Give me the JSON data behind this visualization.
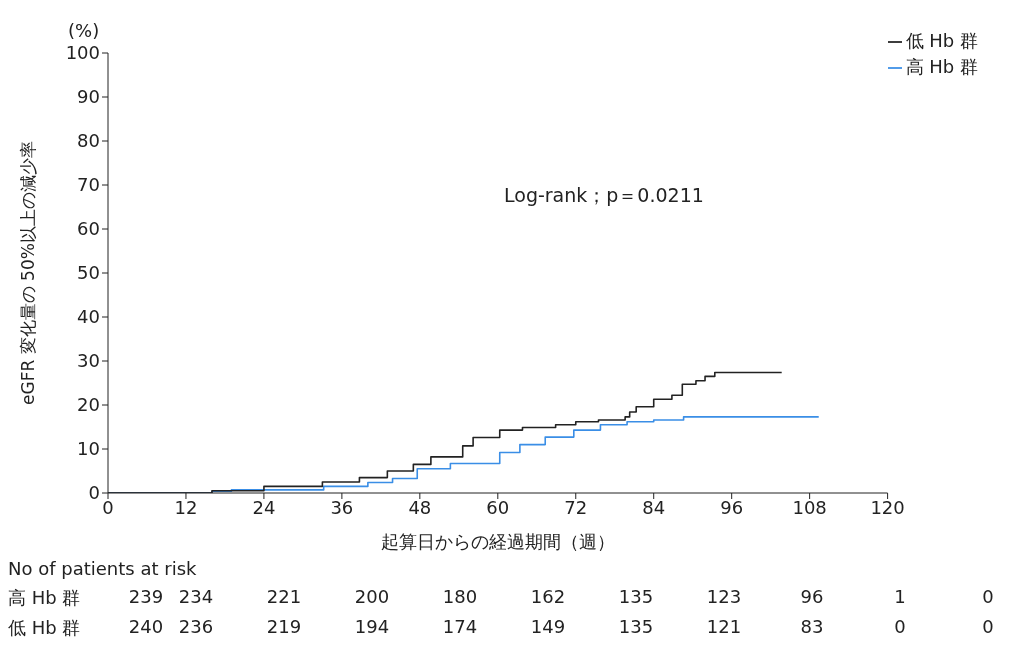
{
  "chart_data": {
    "type": "step",
    "xlabel": "起算日からの経過期間（週）",
    "ylabel": "eGFR 変化量の 50%以上の減少率",
    "xlim": [
      0,
      120
    ],
    "xticks": [
      0,
      12,
      24,
      36,
      48,
      60,
      72,
      84,
      96,
      108,
      120
    ],
    "ylim": [
      0,
      100
    ],
    "yticks": [
      0,
      10,
      20,
      30,
      40,
      50,
      60,
      70,
      80,
      90,
      100
    ],
    "legend": "top right",
    "grid": false,
    "marker": "none",
    "line_style": "solid",
    "series": [
      {
        "name": "高 Hb 群",
        "color": "#3a8ee6",
        "x": [
          0,
          16,
          19,
          33.2,
          40,
          43.8,
          47.6,
          52.7,
          60.3,
          63.4,
          67.3,
          71.7,
          75.8,
          79.9,
          84,
          88.6,
          109.4
        ],
        "values": [
          0,
          0.4,
          0.7,
          1.5,
          2.4,
          3.3,
          5.5,
          6.7,
          9.2,
          11,
          12.7,
          14.3,
          15.5,
          16.2,
          16.6,
          17.3,
          17.3
        ]
      },
      {
        "name": "低 Hb 群",
        "color": "#222222",
        "x": [
          0,
          16,
          24,
          33,
          38.7,
          43,
          47,
          49.7,
          54.6,
          56.2,
          60.3,
          63.8,
          68.9,
          72,
          75.5,
          79.6,
          80.3,
          81.3,
          84,
          86.8,
          88.4,
          90.5,
          91.9,
          93.4,
          103.7
        ],
        "values": [
          0,
          0.5,
          1.5,
          2.5,
          3.5,
          5,
          6.5,
          8.2,
          10.7,
          12.6,
          14.3,
          14.9,
          15.5,
          16.2,
          16.6,
          17.3,
          18.4,
          19.6,
          21.3,
          22.2,
          24.7,
          25.5,
          26.5,
          27.4,
          27.4
        ]
      }
    ],
    "annotations": [
      "(%)",
      "Log-rank；p＝0.0211",
      "No of patients at risk",
      "高 Hb 群",
      "239",
      "234",
      "221",
      "200",
      "180",
      "162",
      "135",
      "123",
      "96",
      "1",
      "0",
      "低 Hb 群",
      "240",
      "236",
      "219",
      "194",
      "174",
      "149",
      "135",
      "121",
      "83",
      "0",
      "0"
    ]
  }
}
